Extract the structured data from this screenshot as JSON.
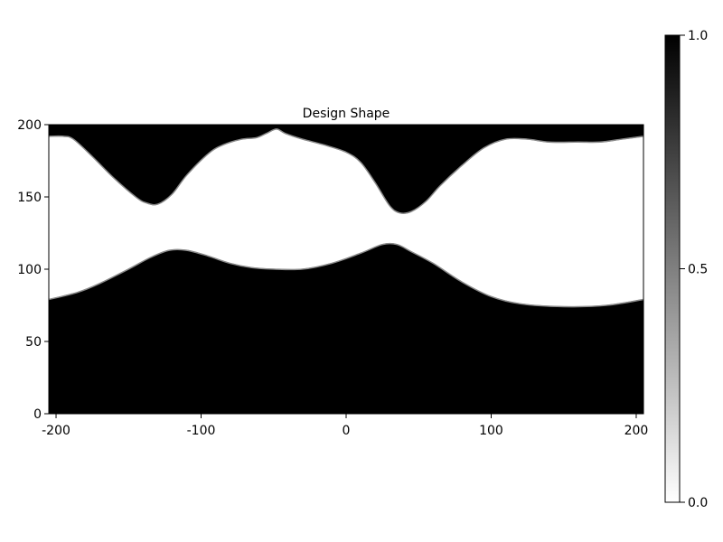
{
  "chart_data": {
    "type": "heatmap",
    "title": "Design Shape",
    "xlabel": "",
    "ylabel": "",
    "xlim": [
      -205,
      205
    ],
    "ylim": [
      0,
      200
    ],
    "x_ticks": [
      -200,
      -100,
      0,
      100,
      200
    ],
    "y_ticks": [
      0,
      50,
      100,
      150,
      200
    ],
    "x_tick_labels": [
      "-200",
      "-100",
      "0",
      "100",
      "200"
    ],
    "y_tick_labels": [
      "0",
      "50",
      "100",
      "150",
      "200"
    ],
    "colormap": {
      "low": "#ffffff",
      "high": "#000000"
    },
    "colorbar": {
      "range": [
        0.0,
        1.0
      ],
      "ticks": [
        0.0,
        0.5,
        1.0
      ],
      "tick_labels": [
        "0.0",
        "0.5",
        "1.0"
      ]
    },
    "regions": [
      {
        "value": 1.0,
        "description_of_boundary": "lower solid region: filled from y=0 up to boundary",
        "boundary": [
          [
            -205,
            79
          ],
          [
            -185,
            84
          ],
          [
            -170,
            90
          ],
          [
            -150,
            100
          ],
          [
            -135,
            108
          ],
          [
            -122,
            113
          ],
          [
            -110,
            113
          ],
          [
            -95,
            109
          ],
          [
            -80,
            104
          ],
          [
            -65,
            101
          ],
          [
            -50,
            100
          ],
          [
            -30,
            100
          ],
          [
            -10,
            104
          ],
          [
            10,
            111
          ],
          [
            25,
            117
          ],
          [
            35,
            117
          ],
          [
            45,
            112
          ],
          [
            60,
            104
          ],
          [
            80,
            91
          ],
          [
            100,
            81
          ],
          [
            120,
            76
          ],
          [
            150,
            74
          ],
          [
            180,
            75
          ],
          [
            205,
            79
          ]
        ]
      },
      {
        "value": 1.0,
        "description_of_boundary": "upper solid region: filled from boundary up to y=200",
        "boundary": [
          [
            -205,
            192
          ],
          [
            -195,
            192
          ],
          [
            -188,
            190
          ],
          [
            -175,
            178
          ],
          [
            -160,
            163
          ],
          [
            -145,
            150
          ],
          [
            -138,
            146
          ],
          [
            -130,
            145
          ],
          [
            -120,
            152
          ],
          [
            -110,
            165
          ],
          [
            -95,
            180
          ],
          [
            -85,
            186
          ],
          [
            -72,
            190
          ],
          [
            -62,
            191
          ],
          [
            -55,
            194
          ],
          [
            -48,
            197
          ],
          [
            -42,
            194
          ],
          [
            -30,
            190
          ],
          [
            -15,
            186
          ],
          [
            0,
            181
          ],
          [
            10,
            174
          ],
          [
            20,
            160
          ],
          [
            30,
            144
          ],
          [
            37,
            139
          ],
          [
            45,
            140
          ],
          [
            55,
            147
          ],
          [
            65,
            158
          ],
          [
            80,
            172
          ],
          [
            95,
            184
          ],
          [
            110,
            190
          ],
          [
            125,
            190
          ],
          [
            140,
            188
          ],
          [
            160,
            188
          ],
          [
            175,
            188
          ],
          [
            190,
            190
          ],
          [
            205,
            192
          ]
        ]
      }
    ]
  }
}
